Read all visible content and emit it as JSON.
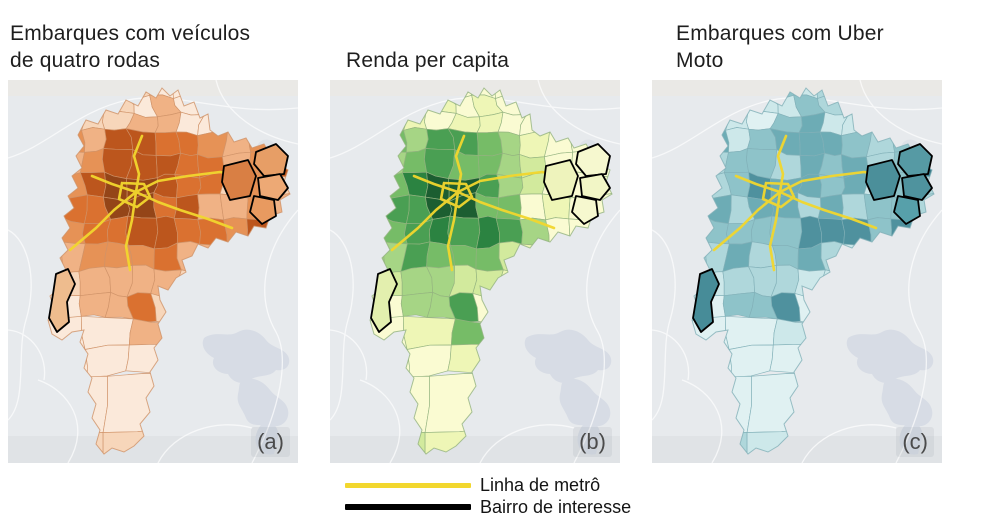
{
  "panels": [
    {
      "id": "a",
      "title": "Embarques com veículos de quatro rodas",
      "label": "(a)"
    },
    {
      "id": "b",
      "title": "Renda per capita",
      "label": "(b)"
    },
    {
      "id": "c",
      "title": "Embarques com Uber Moto",
      "label": "(c)"
    }
  ],
  "legend": {
    "items": [
      {
        "label": "Linha de metrô",
        "color": "#f2d72e"
      },
      {
        "label": "Bairro de interesse",
        "color": "#000000"
      }
    ]
  },
  "chart_data": {
    "type": "choropleth",
    "region": "São Paulo municipality districts (three small-multiple maps)",
    "basemap": {
      "background": "#e7eaed",
      "water": "#d7dce5",
      "roads": "#ffffff"
    },
    "panels": [
      {
        "label": "(a)",
        "title": "Embarques com veículos de quatro rodas",
        "colormap": "oranges",
        "scale": [
          "#fbe9da",
          "#f7d6ba",
          "#f0b285",
          "#e69256",
          "#da7130",
          "#bc561d",
          "#944518"
        ],
        "stroke": "#cf9268",
        "interest_fills": [
          "#d97f44",
          "#e79e66",
          "#eda975",
          "#e89a60",
          "#eebc8e"
        ],
        "pattern": "highest values in central districts around the metro hub, medium-high along the east-zone corridor and south-central corridor, lightest in the far-south and peripheral districts"
      },
      {
        "label": "(b)",
        "title": "Renda per capita",
        "colormap": "yellow-green",
        "scale": [
          "#fafbd2",
          "#eef6b6",
          "#d2ea9d",
          "#a6d585",
          "#76bc67",
          "#4a9f53",
          "#2b8341",
          "#1c5e31"
        ],
        "stroke": "#93b37f",
        "interest_fills": [
          "#eef3bc",
          "#f6f8cf",
          "#f2f6c6",
          "#f6f8cf",
          "#e3efae"
        ],
        "pattern": "highest income concentrated in the central-west districts, decreasing outward; east-zone highlighted districts and far-south periphery are lightest"
      },
      {
        "label": "(c)",
        "title": "Embarques com Uber Moto",
        "colormap": "teal",
        "scale": [
          "#e0f1f2",
          "#cde8ea",
          "#afd7db",
          "#8ec3c9",
          "#6dacb5",
          "#4f919e",
          "#3b7c8a"
        ],
        "stroke": "#82b0b8",
        "interest_fills": [
          "#4b8f9a",
          "#569aa4",
          "#4f939e",
          "#57a0aa",
          "#478c98"
        ],
        "pattern": "medium-high values dispersed in a ring around the center and in the highlighted east-zone and southwest districts; lightest in far-south and north periphery"
      }
    ],
    "overlays": [
      {
        "name": "Linha de metrô",
        "color": "#f2d72e"
      },
      {
        "name": "Bairro de interesse",
        "color": "#000000"
      }
    ]
  }
}
